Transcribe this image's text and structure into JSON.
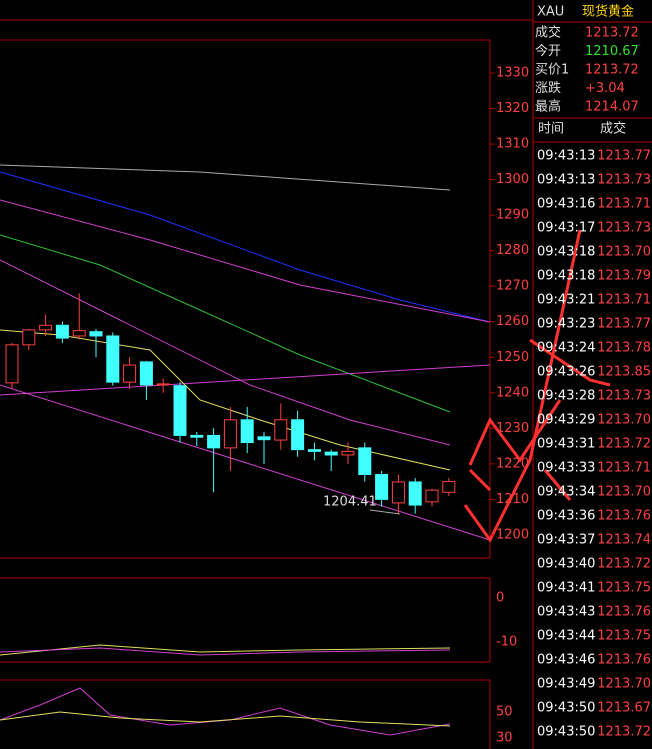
{
  "header": {
    "symbol": "XAU",
    "name": "现货黄金"
  },
  "quote": [
    {
      "label": "成交",
      "value": "1213.72"
    },
    {
      "label": "今开",
      "value": "1210.67"
    },
    {
      "label": "买价1",
      "value": "1213.72"
    },
    {
      "label": "涨跌",
      "value": "+3.04"
    },
    {
      "label": "最高",
      "value": "1214.07"
    }
  ],
  "trades": {
    "columns": [
      "时间",
      "成交"
    ],
    "rows": [
      [
        "09:43:13",
        "1213.77"
      ],
      [
        "09:43:13",
        "1213.73"
      ],
      [
        "09:43:16",
        "1213.71"
      ],
      [
        "09:43:17",
        "1213.73"
      ],
      [
        "09:43:18",
        "1213.70"
      ],
      [
        "09:43:18",
        "1213.79"
      ],
      [
        "09:43:21",
        "1213.71"
      ],
      [
        "09:43:23",
        "1213.77"
      ],
      [
        "09:43:24",
        "1213.78"
      ],
      [
        "09:43:26",
        "1213.85"
      ],
      [
        "09:43:28",
        "1213.73"
      ],
      [
        "09:43:29",
        "1213.70"
      ],
      [
        "09:43:31",
        "1213.72"
      ],
      [
        "09:43:33",
        "1213.71"
      ],
      [
        "09:43:34",
        "1213.70"
      ],
      [
        "09:43:36",
        "1213.76"
      ],
      [
        "09:43:37",
        "1213.74"
      ],
      [
        "09:43:40",
        "1213.72"
      ],
      [
        "09:43:41",
        "1213.75"
      ],
      [
        "09:43:43",
        "1213.76"
      ],
      [
        "09:43:44",
        "1213.75"
      ],
      [
        "09:43:46",
        "1213.76"
      ],
      [
        "09:43:49",
        "1213.70"
      ],
      [
        "09:43:50",
        "1213.67"
      ],
      [
        "09:43:50",
        "1213.72"
      ]
    ]
  },
  "chart_data": {
    "type": "candlestick",
    "ylim": [
      1193.5,
      1339.3
    ],
    "yticks": [
      1200,
      1210,
      1220,
      1230,
      1240,
      1250,
      1260,
      1270,
      1280,
      1290,
      1300,
      1310,
      1320,
      1330
    ],
    "annotation": "1204.41",
    "candles": [
      {
        "open": 1242.8,
        "high": 1254,
        "low": 1241,
        "close": 1253.5
      },
      {
        "open": 1253.5,
        "high": 1258,
        "low": 1252,
        "close": 1257.7
      },
      {
        "open": 1257.7,
        "high": 1262,
        "low": 1256,
        "close": 1259
      },
      {
        "open": 1259,
        "high": 1260,
        "low": 1254,
        "close": 1255.4
      },
      {
        "open": 1256,
        "high": 1268,
        "low": 1255,
        "close": 1257.5
      },
      {
        "open": 1257.2,
        "high": 1258,
        "low": 1250,
        "close": 1256
      },
      {
        "open": 1256,
        "high": 1257,
        "low": 1242,
        "close": 1243
      },
      {
        "open": 1243,
        "high": 1250,
        "low": 1241,
        "close": 1247.8
      },
      {
        "open": 1248.7,
        "high": 1249,
        "low": 1238,
        "close": 1242.2
      },
      {
        "open": 1242.2,
        "high": 1244,
        "low": 1240,
        "close": 1242.5
      },
      {
        "open": 1242,
        "high": 1243,
        "low": 1226,
        "close": 1228
      },
      {
        "open": 1228,
        "high": 1229,
        "low": 1225,
        "close": 1227.5
      },
      {
        "open": 1228,
        "high": 1230,
        "low": 1212,
        "close": 1224.5
      },
      {
        "open": 1224.5,
        "high": 1236,
        "low": 1218,
        "close": 1232.4
      },
      {
        "open": 1232.4,
        "high": 1236,
        "low": 1223,
        "close": 1226
      },
      {
        "open": 1227.6,
        "high": 1229,
        "low": 1220,
        "close": 1226.8
      },
      {
        "open": 1226.7,
        "high": 1237,
        "low": 1224,
        "close": 1232.4
      },
      {
        "open": 1232.4,
        "high": 1235,
        "low": 1222,
        "close": 1224
      },
      {
        "open": 1224,
        "high": 1226,
        "low": 1221,
        "close": 1223.5
      },
      {
        "open": 1223.3,
        "high": 1224,
        "low": 1218,
        "close": 1222.5
      },
      {
        "open": 1222.5,
        "high": 1226,
        "low": 1220,
        "close": 1223.5
      },
      {
        "open": 1224.5,
        "high": 1226,
        "low": 1215,
        "close": 1217
      },
      {
        "open": 1217,
        "high": 1218,
        "low": 1208,
        "close": 1210
      },
      {
        "open": 1209,
        "high": 1217,
        "low": 1206,
        "close": 1214.9
      },
      {
        "open": 1214.9,
        "high": 1216,
        "low": 1206,
        "close": 1208.4
      },
      {
        "open": 1209.3,
        "high": 1213,
        "low": 1208,
        "close": 1212.6
      },
      {
        "open": 1212,
        "high": 1216,
        "low": 1211,
        "close": 1215
      }
    ]
  },
  "sub_panels": {
    "volume_ticks": [
      "0",
      "-10"
    ],
    "oscillator_ticks": [
      "50",
      "30"
    ]
  }
}
